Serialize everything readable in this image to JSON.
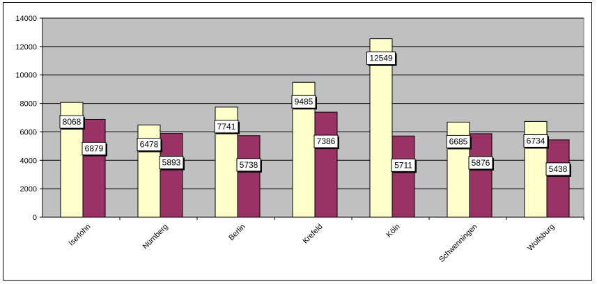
{
  "chart_data": {
    "type": "bar",
    "categories": [
      "Iserlohn",
      "Nürnberg",
      "Berlin",
      "Krefeld",
      "Köln",
      "Schwenningen",
      "Wolfsburg"
    ],
    "series": [
      {
        "values": [
          8068,
          6478,
          7741,
          9485,
          12549,
          6685,
          6734
        ],
        "color": "#ffffcc"
      },
      {
        "values": [
          6879,
          5893,
          5738,
          7386,
          5711,
          5876,
          5438
        ],
        "color": "#993366"
      }
    ],
    "title": "",
    "xlabel": "",
    "ylabel": "",
    "ylim": [
      0,
      14000
    ],
    "yticks": [
      "0",
      "2000",
      "4000",
      "6000",
      "8000",
      "10000",
      "12000",
      "14000"
    ],
    "grid": true,
    "legend": "none",
    "plot_background": "#c0c0c0",
    "data_labels": true
  }
}
